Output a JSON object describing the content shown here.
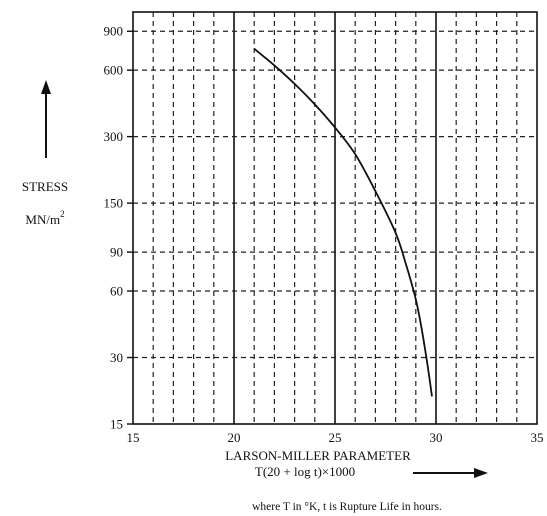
{
  "chart_data": {
    "type": "line",
    "title": "",
    "ylabel": {
      "line1": "STRESS",
      "line2_base": "MN/m",
      "line2_sup": "2"
    },
    "xlabel": {
      "line1": "LARSON-MILLER PARAMETER",
      "line2": "T(20 + log t)×1000"
    },
    "note": "where T in °K, t is Rupture Life in hours.",
    "xlim": [
      15,
      35
    ],
    "ylim": [
      15,
      1100
    ],
    "y_scale": "log",
    "grid": true,
    "x_ticks": [
      15,
      20,
      25,
      30,
      35
    ],
    "x_tick_labels": [
      "15",
      "20",
      "25",
      "30",
      "35"
    ],
    "x_minor_grid": [
      16,
      17,
      18,
      19,
      21,
      22,
      23,
      24,
      26,
      27,
      28,
      29,
      31,
      32,
      33,
      34
    ],
    "y_ticks": [
      15,
      30,
      60,
      90,
      150,
      300,
      600,
      900
    ],
    "y_tick_labels": [
      "15",
      "30",
      "60",
      "90",
      "150",
      "300",
      "600",
      "900"
    ],
    "series": [
      {
        "x": [
          21.0,
          22.0,
          23.0,
          24.0,
          25.0,
          26.0,
          27.0,
          28.0,
          28.5,
          29.0,
          29.3,
          29.6,
          29.8
        ],
        "y": [
          750,
          630,
          520,
          420,
          330,
          250,
          170,
          110,
          80,
          55,
          40,
          27,
          20
        ]
      }
    ]
  }
}
